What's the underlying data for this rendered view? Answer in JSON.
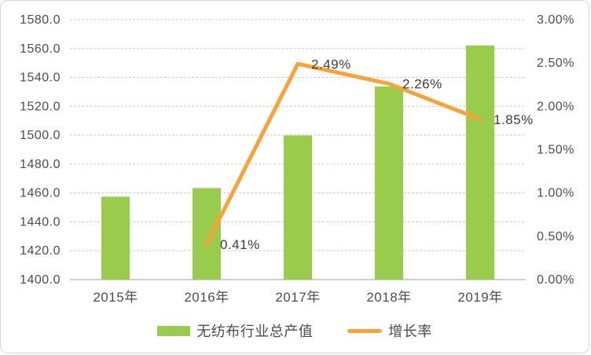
{
  "chart_data": {
    "type": "combo-bar-line",
    "categories": [
      "2015年",
      "2016年",
      "2017年",
      "2018年",
      "2019年"
    ],
    "series": [
      {
        "name": "无纺布行业总产值",
        "type": "bar",
        "axis": "left",
        "color": "#99CC4C",
        "values": [
          1457.4,
          1463.4,
          1499.8,
          1533.7,
          1562.1
        ]
      },
      {
        "name": "增长率",
        "type": "line",
        "axis": "right",
        "color": "#F8A33A",
        "values": [
          null,
          0.41,
          2.49,
          2.26,
          1.85
        ],
        "labels": [
          null,
          "0.41%",
          "2.49%",
          "2.26%",
          "1.85%"
        ]
      }
    ],
    "left_axis": {
      "min": 1400,
      "max": 1580,
      "step": 20,
      "tick_labels": [
        "1400.0",
        "1420.0",
        "1440.0",
        "1460.0",
        "1480.0",
        "1500.0",
        "1520.0",
        "1540.0",
        "1560.0",
        "1580.0"
      ]
    },
    "right_axis": {
      "min": 0,
      "max": 3,
      "step": 0.5,
      "tick_labels": [
        "0.00%",
        "0.50%",
        "1.00%",
        "1.50%",
        "2.00%",
        "2.50%",
        "3.00%"
      ]
    },
    "title": "",
    "grid": true,
    "legend_position": "bottom"
  }
}
